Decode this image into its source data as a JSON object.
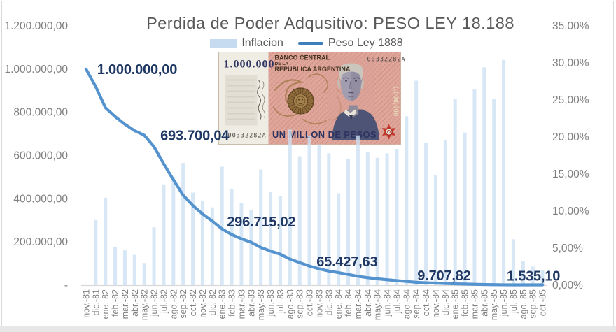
{
  "title": "Perdida de Poder Adqusitivo: PESO LEY 18.188",
  "legend": {
    "inflation_label": "Inflacion",
    "peso_label": "Peso Ley 1888"
  },
  "banknote": {
    "denomination": "1.000.000",
    "issuer_line1": "BANCO CENTRAL",
    "issuer_line2": "DE LA",
    "issuer_line3": "REPUBLICA ARGENTINA",
    "serial_top_right": "00332282A",
    "serial_bottom_left": "00332282A",
    "value_text": "UN MILLON DE PESOS",
    "value_vertical": "1.000.000"
  },
  "chart_data": {
    "type": "combo-bar-line",
    "categories": [
      "nov.-81",
      "dic.-81",
      "ene.-82",
      "feb.-82",
      "mar.-82",
      "abr.-82",
      "may.-82",
      "jun.-82",
      "jul.-82",
      "ago.-82",
      "sep.-82",
      "oct.-82",
      "nov.-82",
      "dic.-82",
      "ene.-83",
      "feb.-83",
      "mar.-83",
      "abr.-83",
      "may.-83",
      "jun.-83",
      "jul.-83",
      "ago.-83",
      "sep.-83",
      "oct.-83",
      "nov.-83",
      "dic.-83",
      "ene.-84",
      "feb.-84",
      "mar.-84",
      "abr.-84",
      "may.-84",
      "jun.-84",
      "jul.-84",
      "ago.-84",
      "sep.-84",
      "oct.-84",
      "nov.-84",
      "dic.-84",
      "ene.-85",
      "feb.-85",
      "mar.-85",
      "abr.-85",
      "may.-85",
      "jun.-85",
      "jul.-85",
      "ago.-85",
      "sep.-85",
      "oct.-85"
    ],
    "series": [
      {
        "name": "Inflacion",
        "type": "bar",
        "axis": "right",
        "unit": "%",
        "values": [
          null,
          8.8,
          11.8,
          5.2,
          4.7,
          4.1,
          3.0,
          7.8,
          13.6,
          14.6,
          16.5,
          12.5,
          11.4,
          10.5,
          16.0,
          13.0,
          11.1,
          10.1,
          15.6,
          12.6,
          12.0,
          21.0,
          17.4,
          20.1,
          19.0,
          17.8,
          12.4,
          17.0,
          20.2,
          18.0,
          17.2,
          17.8,
          18.4,
          22.8,
          27.6,
          19.2,
          14.9,
          19.6,
          25.1,
          20.6,
          26.4,
          29.4,
          25.1,
          30.4,
          6.2,
          3.3,
          2.5,
          2.0
        ]
      },
      {
        "name": "Peso Ley 1888",
        "type": "line",
        "axis": "left",
        "unit": "pesos",
        "values": [
          1000000.0,
          918586.17,
          821158.32,
          780117.39,
          744666.94,
          714924.44,
          693700.04,
          640565.78,
          561301.47,
          487553.57,
          416588.42,
          368608.59,
          329375.3,
          296715.02,
          260287.56,
          234394.19,
          214686.46,
          198421.72,
          174663.93,
          157847.14,
          143413.67,
          120608.26,
          104539.6,
          88574.7,
          75741.62,
          65427.63,
          58053.5,
          49485.29,
          41058.7,
          34702.18,
          29529.95,
          25000.63,
          21058.76,
          17102.83,
          13367.52,
          11184.28,
          9707.82,
          8017.47,
          6330.34,
          5184.74,
          4051.6,
          3092.71,
          2441.9,
          1849.69,
          1720.36,
          1645.0,
          1585.22,
          1535.1
        ]
      }
    ],
    "annotations": [
      {
        "month": "nov.-81",
        "text": "1.000.000,00"
      },
      {
        "month": "may.-82",
        "text": "693.700,04"
      },
      {
        "month": "dic.-82",
        "text": "296.715,02"
      },
      {
        "month": "dic.-83",
        "text": "65.427,63"
      },
      {
        "month": "nov.-84",
        "text": "9.707,82"
      },
      {
        "month": "oct.-85",
        "text": "1.535,10"
      }
    ],
    "left_axis": {
      "ticks": [
        "1.200.000,00",
        "1.000.000,00",
        "800.000,00",
        "600.000,00",
        "400.000,00",
        "200.000,00",
        "-"
      ],
      "min": 0,
      "max": 1200000
    },
    "right_axis": {
      "ticks": [
        "35,00%",
        "30,00%",
        "25,00%",
        "20,00%",
        "15,00%",
        "10,00%",
        "5,00%",
        "0,00%"
      ],
      "min": 0,
      "max": 35
    },
    "grid": false,
    "legend_position": "top",
    "colors": {
      "bar": "#cde0f2",
      "line": "#5593cf",
      "annotation": "#1f3864",
      "axis_text": "#7f7f7f",
      "axis_line": "#d9d9d9"
    }
  }
}
